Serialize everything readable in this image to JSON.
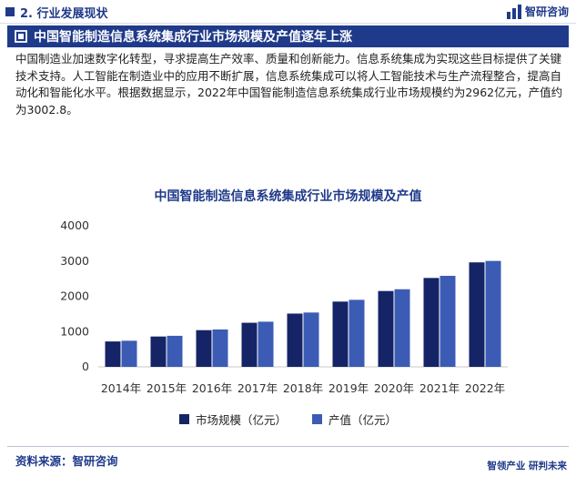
{
  "header": {
    "section_label": "2. 行业发展现状",
    "logo_text": "智研咨询"
  },
  "banner": {
    "title": "中国智能制造信息系统集成行业市场规模及产值逐年上涨"
  },
  "intro_text": "中国制造业加速数字化转型，寻求提高生产效率、质量和创新能力。信息系统集成为实现这些目标提供了关键技术支持。人工智能在制造业中的应用不断扩展，信息系统集成可以将人工智能技术与生产流程整合，提高自动化和智能化水平。根据数据显示，2022年中国智能制造信息系统集成行业市场规模约为2962亿元，产值约为3002.8。",
  "footer": {
    "source": "资料来源：智研咨询",
    "slogan": "智领产业  研判未来"
  },
  "colors": {
    "brand": "#1f3a8a",
    "series_market": "#142466",
    "series_output": "#3b5bb5"
  },
  "chart_data": {
    "type": "bar",
    "title": "中国智能制造信息系统集成行业市场规模及产值",
    "categories": [
      "2014年",
      "2015年",
      "2016年",
      "2017年",
      "2018年",
      "2019年",
      "2020年",
      "2021年",
      "2022年"
    ],
    "series": [
      {
        "name": "市场规模（亿元）",
        "values": [
          720,
          860,
          1040,
          1250,
          1510,
          1850,
          2150,
          2520,
          2962
        ]
      },
      {
        "name": "产值（亿元）",
        "values": [
          740,
          880,
          1060,
          1280,
          1540,
          1900,
          2200,
          2580,
          3002.8
        ]
      }
    ],
    "yticks": [
      0,
      1000,
      2000,
      3000,
      4000
    ],
    "ylim": [
      0,
      4000
    ],
    "xlabel": "",
    "ylabel": "",
    "legend_position": "bottom",
    "grid": false
  }
}
